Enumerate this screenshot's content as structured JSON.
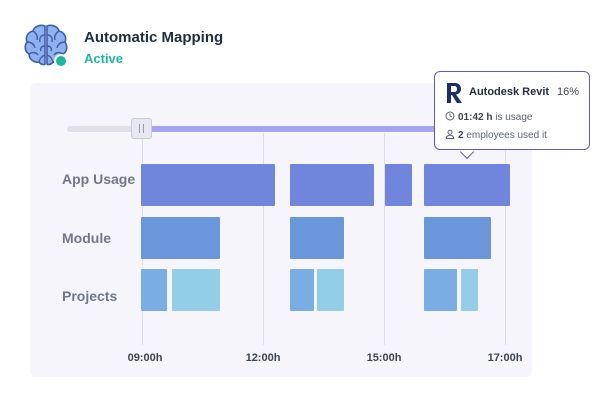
{
  "header": {
    "icon": "brain-icon",
    "title": "Automatic Mapping",
    "status": "Active",
    "status_color": "#1cb89c"
  },
  "timeline": {
    "range_start_fraction": 0.18,
    "rows": [
      {
        "label": "App Usage",
        "color": "#6f86dc"
      },
      {
        "label": "Module",
        "color": "#6a96dc"
      },
      {
        "label": "Projects",
        "color": "#7aade3"
      }
    ],
    "ticks": [
      "09:00h",
      "12:00h",
      "15:00h",
      "17:00h"
    ]
  },
  "tooltip": {
    "app_icon": "autodesk-revit-icon",
    "app_name": "Autodesk Revit",
    "percent": "16%",
    "duration_value": "01:42 h",
    "duration_suffix": " is usage",
    "duration_icon": "clock-icon",
    "employees_value": "2",
    "employees_suffix": " employees used it",
    "employees_icon": "user-icon",
    "border_color": "#5e57d4"
  }
}
